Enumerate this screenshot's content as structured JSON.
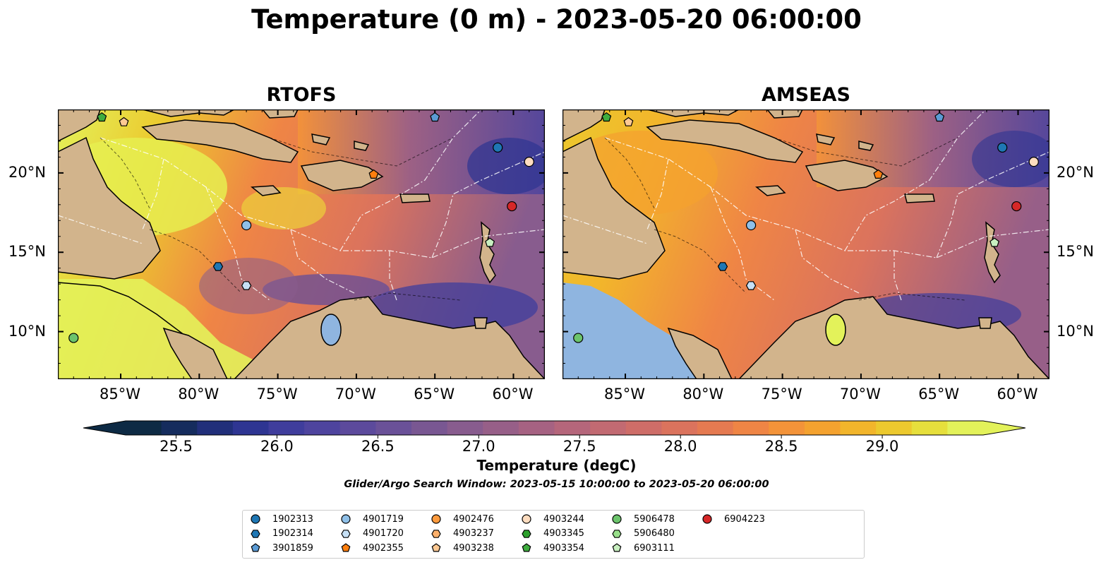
{
  "title": "Temperature (0 m) - 2023-05-20 06:00:00",
  "panels": {
    "left": {
      "title": "RTOFS"
    },
    "right": {
      "title": "AMSEAS"
    }
  },
  "axes": {
    "lon_ticks": [
      "85°W",
      "80°W",
      "75°W",
      "70°W",
      "65°W",
      "60°W"
    ],
    "lat_ticks": [
      "20°N",
      "15°N",
      "10°N"
    ],
    "lon_range": [
      -89,
      -58
    ],
    "lat_range": [
      7,
      24
    ]
  },
  "colorbar": {
    "label": "Temperature (degC)",
    "ticks": [
      "25.5",
      "26.0",
      "26.5",
      "27.0",
      "27.5",
      "28.0",
      "28.5",
      "29.0"
    ],
    "min": 25.25,
    "max": 29.5,
    "colors": [
      "#0d2a44",
      "#152c5d",
      "#212f7a",
      "#2e3592",
      "#3f3d9c",
      "#4e449e",
      "#5c4a9c",
      "#6a5198",
      "#795792",
      "#885c8e",
      "#975f88",
      "#a66282",
      "#b5667b",
      "#c26a72",
      "#ce6d68",
      "#db735d",
      "#e57a51",
      "#ef8545",
      "#f39339",
      "#f4a22f",
      "#f2b52b",
      "#ecc92e",
      "#e6df3c",
      "#e3f25a"
    ]
  },
  "search_window": "Glider/Argo Search Window: 2023-05-15 10:00:00 to 2023-05-20 06:00:00",
  "legend": [
    {
      "id": "1902313",
      "marker": "circle",
      "color": "#1f77b4"
    },
    {
      "id": "1902314",
      "marker": "hexagon",
      "color": "#1f77b4"
    },
    {
      "id": "3901859",
      "marker": "pentagon",
      "color": "#5b9bd5"
    },
    {
      "id": "4901719",
      "marker": "circle",
      "color": "#8fc0e8"
    },
    {
      "id": "4901720",
      "marker": "hexagon",
      "color": "#c6e0f5"
    },
    {
      "id": "4902355",
      "marker": "pentagon",
      "color": "#ff7f0e"
    },
    {
      "id": "4902476",
      "marker": "circle",
      "color": "#fd9a3d"
    },
    {
      "id": "4903237",
      "marker": "hexagon",
      "color": "#fdb06b"
    },
    {
      "id": "4903238",
      "marker": "pentagon",
      "color": "#fdc993"
    },
    {
      "id": "4903244",
      "marker": "circle",
      "color": "#fddcbf"
    },
    {
      "id": "4903345",
      "marker": "hexagon",
      "color": "#2ca02c"
    },
    {
      "id": "4903354",
      "marker": "pentagon",
      "color": "#3fad3f"
    },
    {
      "id": "5906478",
      "marker": "circle",
      "color": "#6cc46c"
    },
    {
      "id": "5906480",
      "marker": "hexagon",
      "color": "#98df8a"
    },
    {
      "id": "6903111",
      "marker": "pentagon",
      "color": "#c8efc0"
    },
    {
      "id": "6904223",
      "marker": "circle",
      "color": "#d62728"
    }
  ],
  "observations": [
    {
      "id": "1902313",
      "lon": -61.0,
      "lat": 21.6
    },
    {
      "id": "6904223",
      "lon": -60.1,
      "lat": 17.9
    },
    {
      "id": "4903244",
      "lon": -59.0,
      "lat": 20.7
    },
    {
      "id": "3901859",
      "lon": -65.0,
      "lat": 23.5
    },
    {
      "id": "4903354",
      "lon": -86.2,
      "lat": 23.5
    },
    {
      "id": "4903238",
      "lon": -84.8,
      "lat": 23.2
    },
    {
      "id": "4902355",
      "lon": -68.9,
      "lat": 19.9
    },
    {
      "id": "4901719",
      "lon": -77.0,
      "lat": 16.7
    },
    {
      "id": "1902314",
      "lon": -78.8,
      "lat": 14.1
    },
    {
      "id": "4901720",
      "lon": -77.0,
      "lat": 12.9
    },
    {
      "id": "6903111",
      "lon": -61.5,
      "lat": 15.6
    },
    {
      "id": "5906478",
      "lon": -88.0,
      "lat": 9.6
    }
  ]
}
